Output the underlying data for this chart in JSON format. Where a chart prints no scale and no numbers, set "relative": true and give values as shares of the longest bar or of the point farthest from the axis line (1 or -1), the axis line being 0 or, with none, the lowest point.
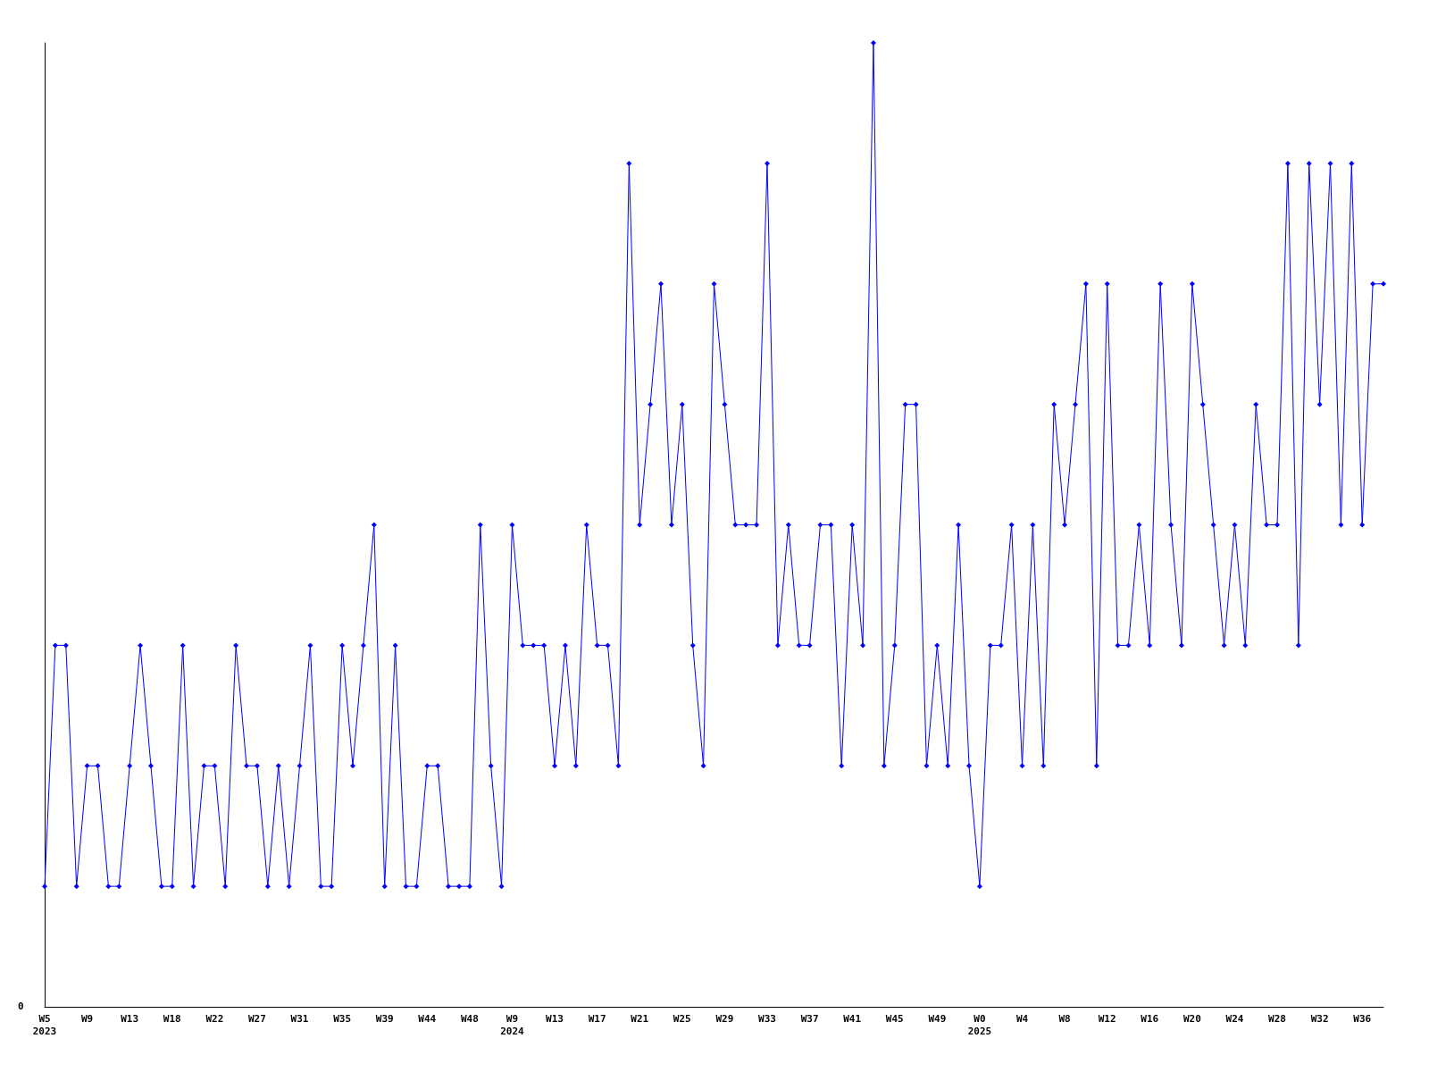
{
  "chart_data": {
    "type": "line",
    "relative": true,
    "color": "#0000ff",
    "marker": "diamond",
    "annotations": [
      "0"
    ],
    "categories": [
      "W5\n2023",
      null,
      null,
      null,
      "W9",
      null,
      null,
      null,
      "W13",
      null,
      null,
      null,
      "W18",
      null,
      null,
      null,
      "W22",
      null,
      null,
      null,
      "W27",
      null,
      null,
      null,
      "W31",
      null,
      null,
      null,
      "W35",
      null,
      null,
      null,
      "W39",
      null,
      null,
      null,
      "W44",
      null,
      null,
      null,
      "W48",
      null,
      null,
      null,
      "W9\n2024",
      null,
      null,
      null,
      "W13",
      null,
      null,
      null,
      "W17",
      null,
      null,
      null,
      "W21",
      null,
      null,
      null,
      "W25",
      null,
      null,
      null,
      "W29",
      null,
      null,
      null,
      "W33",
      null,
      null,
      null,
      "W37",
      null,
      null,
      null,
      "W41",
      null,
      null,
      null,
      "W45",
      null,
      null,
      null,
      "W49",
      null,
      null,
      null,
      "W0\n2025",
      null,
      null,
      null,
      "W4",
      null,
      null,
      null,
      "W8",
      null,
      null,
      null,
      "W12",
      null,
      null,
      null,
      "W16",
      null,
      null,
      null,
      "W20",
      null,
      null,
      null,
      "W24",
      null,
      null,
      null,
      "W28",
      null,
      null,
      null,
      "W32",
      null,
      null,
      null,
      "W36",
      null,
      null
    ],
    "values": [
      0.125,
      0.375,
      0.375,
      0.125,
      0.25,
      0.25,
      0.125,
      0.125,
      0.25,
      0.375,
      0.25,
      0.125,
      0.125,
      0.375,
      0.125,
      0.25,
      0.25,
      0.125,
      0.375,
      0.25,
      0.25,
      0.125,
      0.25,
      0.125,
      0.25,
      0.375,
      0.125,
      0.125,
      0.375,
      0.25,
      0.375,
      0.5,
      0.125,
      0.375,
      0.125,
      0.125,
      0.25,
      0.25,
      0.125,
      0.125,
      0.125,
      0.5,
      0.25,
      0.125,
      0.5,
      0.375,
      0.375,
      0.375,
      0.25,
      0.375,
      0.25,
      0.5,
      0.375,
      0.375,
      0.25,
      0.875,
      0.5,
      0.625,
      0.75,
      0.5,
      0.625,
      0.375,
      0.25,
      0.75,
      0.625,
      0.5,
      0.5,
      0.5,
      0.875,
      0.375,
      0.5,
      0.375,
      0.375,
      0.5,
      0.5,
      0.25,
      0.5,
      0.375,
      1,
      0.25,
      0.375,
      0.625,
      0.625,
      0.25,
      0.375,
      0.25,
      0.5,
      0.25,
      0.125,
      0.375,
      0.375,
      0.5,
      0.25,
      0.5,
      0.25,
      0.625,
      0.5,
      0.625,
      0.75,
      0.25,
      0.75,
      0.375,
      0.375,
      0.5,
      0.375,
      0.75,
      0.5,
      0.375,
      0.75,
      0.625,
      0.5,
      0.375,
      0.5,
      0.375,
      0.625,
      0.5,
      0.5,
      0.875,
      0.375,
      0.875,
      0.625,
      0.875,
      0.5,
      0.875,
      0.5,
      0.75,
      0.75
    ]
  }
}
